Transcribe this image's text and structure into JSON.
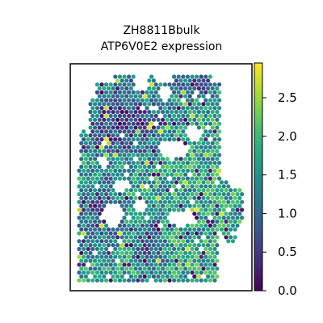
{
  "chart_data": {
    "type": "scatter",
    "subtype": "spatial hexagonal spot map",
    "title_lines": [
      "ZH8811Bbulk",
      "ATP6V0E2 expression"
    ],
    "colormap": "viridis",
    "colorbar": {
      "range": [
        0.0,
        2.95
      ],
      "tick_values": [
        0.0,
        0.5,
        1.0,
        1.5,
        2.0,
        2.5
      ],
      "tick_labels": [
        "0.0",
        "0.5",
        "1.0",
        "1.5",
        "2.0",
        "2.5"
      ]
    },
    "axes_ticks": "none",
    "tissue_region_summary": "irregular tissue section, upper-left lobe mostly low expression (dark purple) with gaps, right and lower-right region mostly 1.5–2.3 (teal/green)",
    "value_distribution": {
      "low_area_mean": 0.6,
      "high_area_mean": 1.7,
      "max_observed": 2.9
    },
    "colors": {
      "viridis_stops": [
        "#440154",
        "#482878",
        "#3e4989",
        "#31688e",
        "#26828e",
        "#1f9e89",
        "#35b779",
        "#6ece58",
        "#b5de2b",
        "#fde725"
      ]
    }
  }
}
